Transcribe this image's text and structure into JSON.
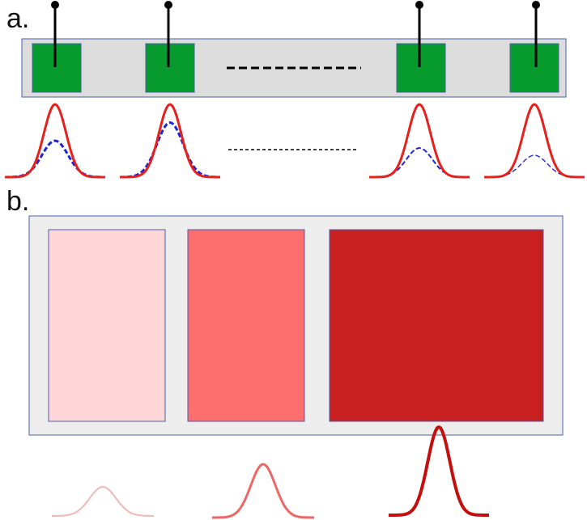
{
  "panel_a": {
    "label": "a.",
    "colors": {
      "bar_fill": "#dcdcdc",
      "bar_stroke": "#4a5fa8",
      "block_fill": "#079a2c",
      "pin": "#000000",
      "red_curve": "#e8201c",
      "blue_curve": "#1d23d6"
    },
    "curve_pairs": [
      {
        "name": "curve-pair-1",
        "blue_relative_height": 0.5
      },
      {
        "name": "curve-pair-2",
        "blue_relative_height": 0.75
      },
      {
        "name": "curve-pair-3",
        "blue_relative_height": 0.4
      },
      {
        "name": "curve-pair-4",
        "blue_relative_height": 0.3
      }
    ]
  },
  "panel_b": {
    "label": "b.",
    "colors": {
      "frame_fill": "#ededed",
      "frame_stroke": "#4a5fa8",
      "box_light": "#ffd6d7",
      "box_medium": "#ff6e6e",
      "box_dark": "#c8201f",
      "curve_light": "#f1b7b5",
      "curve_medium": "#ee6767",
      "curve_dark": "#c50f0f"
    }
  }
}
